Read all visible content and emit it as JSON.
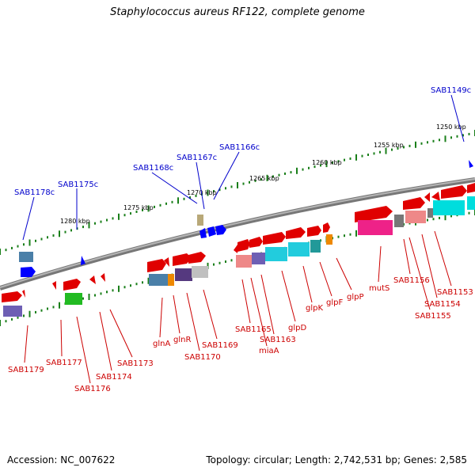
{
  "title": "Staphylococcus aureus RF122, complete genome",
  "footer": {
    "accession": "Accession: NC_007622",
    "topology": "Topology: circular; Length: 2,742,531 bp; Genes: 2,585"
  },
  "scale_labels": [
    "1250 kbp",
    "1255 kbp",
    "1260 kbp",
    "1265 kbp",
    "1270 kbp",
    "1275 kbp",
    "1280 kbp"
  ],
  "genes_top": [
    "SAB1149c",
    "SAB1166c",
    "SAB1167c",
    "SAB1168c",
    "SAB1175c",
    "SAB1178c"
  ],
  "genes_bottom": [
    "SAB1179",
    "SAB1177",
    "SAB1176",
    "SAB1174",
    "SAB1173",
    "glnA",
    "glnR",
    "SAB1170",
    "SAB1169",
    "SAB1165",
    "miaA",
    "SAB1163",
    "glpD",
    "glpK",
    "glpF",
    "glpP",
    "mutS",
    "SAB1156",
    "SAB1155",
    "SAB1154",
    "SAB1153"
  ],
  "colors": {
    "top_label": "#0000cc",
    "bottom_label": "#cc0000",
    "tick": "#1a7f1a",
    "backbone": "#888888",
    "gene_red": "#e00000"
  }
}
